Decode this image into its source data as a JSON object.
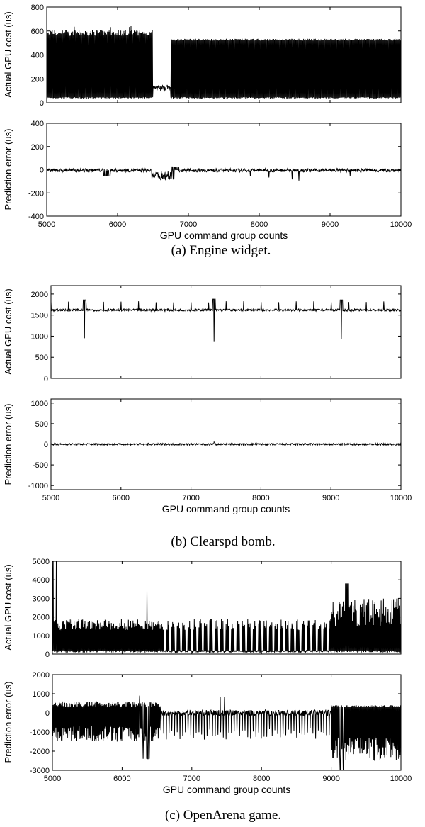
{
  "figure": {
    "captions": [
      "(a) Engine widget.",
      "(b) Clearspd bomb.",
      "(c) OpenArena game."
    ]
  },
  "chart_data": [
    {
      "panel": "a-top",
      "type": "line",
      "ylabel": "Actual GPU cost (us)",
      "xlabel": "",
      "xlim": [
        5000,
        10000
      ],
      "ylim": [
        0,
        800
      ],
      "xticks": [],
      "yticks": [
        0,
        200,
        400,
        600,
        800
      ],
      "series": [
        {
          "baseline": 40,
          "spikes": 530,
          "spike_max": 640,
          "bump_region": [
            6500,
            6750
          ],
          "bump_level": 120
        }
      ]
    },
    {
      "panel": "a-bottom",
      "type": "line",
      "ylabel": "Prediction error (us)",
      "xlabel": "GPU command group counts",
      "xlim": [
        5000,
        10000
      ],
      "ylim": [
        -400,
        400
      ],
      "xticks": [
        5000,
        6000,
        7000,
        8000,
        9000,
        10000
      ],
      "yticks": [
        -400,
        -200,
        0,
        200,
        400
      ],
      "series": [
        {
          "baseline": -5,
          "noise": 30,
          "dip_region": [
            6400,
            6800
          ],
          "dip_level": -80
        }
      ]
    },
    {
      "panel": "b-top",
      "type": "line",
      "ylabel": "Actual GPU cost (us)",
      "xlabel": "",
      "xlim": [
        5000,
        10000
      ],
      "ylim": [
        0,
        2200
      ],
      "xticks": [],
      "yticks": [
        0,
        500,
        1000,
        1500,
        2000
      ],
      "series": [
        {
          "baseline": 1620,
          "spike_max": 1870,
          "dips": [
            {
              "x": 5480,
              "y": 950
            },
            {
              "x": 7330,
              "y": 880
            },
            {
              "x": 9150,
              "y": 940
            }
          ]
        }
      ]
    },
    {
      "panel": "b-bottom",
      "type": "line",
      "ylabel": "Prediction error (us)",
      "xlabel": "GPU command group counts",
      "xlim": [
        5000,
        10000
      ],
      "ylim": [
        -1100,
        1100
      ],
      "xticks": [
        5000,
        6000,
        7000,
        8000,
        9000,
        10000
      ],
      "yticks": [
        -1000,
        -500,
        0,
        500,
        1000
      ],
      "series": [
        {
          "baseline": 0,
          "noise": 40
        }
      ]
    },
    {
      "panel": "c-top",
      "type": "line",
      "ylabel": "Actual GPU cost (us)",
      "xlabel": "",
      "xlim": [
        5000,
        10000
      ],
      "ylim": [
        0,
        5000
      ],
      "xticks": [],
      "yticks": [
        0,
        1000,
        2000,
        3000,
        4000,
        5000
      ],
      "series": [
        {
          "baseline": 100,
          "peak_early": 1700,
          "peak_mid": 1600,
          "peak_late": 3800,
          "max": 5000
        }
      ]
    },
    {
      "panel": "c-bottom",
      "type": "line",
      "ylabel": "Prediction error (us)",
      "xlabel": "GPU command group counts",
      "xlim": [
        5000,
        10000
      ],
      "ylim": [
        -3000,
        2000
      ],
      "xticks": [
        5000,
        6000,
        7000,
        8000,
        9000,
        10000
      ],
      "yticks": [
        -3000,
        -2000,
        -1000,
        0,
        1000,
        2000
      ],
      "series": [
        {
          "baseline": 0,
          "noise_pos": 400,
          "noise_neg": -1500,
          "min": -3000
        }
      ]
    }
  ]
}
